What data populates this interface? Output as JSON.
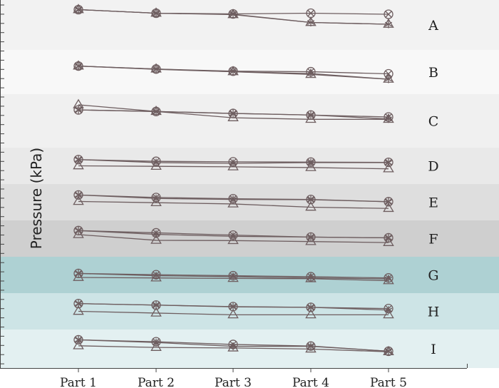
{
  "chart_data": {
    "type": "line",
    "layout": "stacked-bands",
    "categories": [
      "Part 1",
      "Part 2",
      "Part 3",
      "Part 4",
      "Part 5"
    ],
    "ylabel": "Pressure (kPa)",
    "xlabel": "",
    "grid": false,
    "series_markers": [
      "circle-x",
      "asterisk",
      "triangle"
    ],
    "bands": [
      {
        "label": "A",
        "color": "#f2f2f2",
        "range": [
          0,
          10
        ],
        "series": [
          {
            "marker": "circle-x",
            "values": [
              9.3,
              8.3,
              8.1,
              8.3,
              8.0
            ]
          },
          {
            "marker": "asterisk",
            "values": [
              9.3,
              8.3,
              8.0,
              5.7,
              5.2
            ]
          },
          {
            "marker": "triangle",
            "values": [
              9.3,
              8.3,
              7.9,
              5.7,
              5.2
            ]
          }
        ]
      },
      {
        "label": "B",
        "color": "#f8f8f8",
        "range": [
          0,
          10
        ],
        "series": [
          {
            "marker": "circle-x",
            "values": [
              7.0,
              6.0,
              5.3,
              5.1,
              4.4
            ]
          },
          {
            "marker": "asterisk",
            "values": [
              7.0,
              5.9,
              5.1,
              4.5,
              2.6
            ]
          },
          {
            "marker": "triangle",
            "values": [
              7.0,
              6.0,
              5.1,
              4.2,
              2.6
            ]
          }
        ]
      },
      {
        "label": "C",
        "color": "#f0f0f0",
        "range": [
          0,
          10
        ],
        "series": [
          {
            "marker": "circle-x",
            "values": [
              7.8,
              7.4,
              6.9,
              6.5,
              6.0
            ]
          },
          {
            "marker": "asterisk",
            "values": [
              7.8,
              7.4,
              6.9,
              6.5,
              5.5
            ]
          },
          {
            "marker": "triangle",
            "values": [
              9.1,
              7.4,
              5.8,
              5.4,
              5.4
            ]
          }
        ]
      },
      {
        "label": "D",
        "color": "#e9e9e9",
        "range": [
          0,
          10
        ],
        "series": [
          {
            "marker": "circle-x",
            "values": [
              7.5,
              6.8,
              6.6,
              6.5,
              6.4
            ]
          },
          {
            "marker": "asterisk",
            "values": [
              7.5,
              6.3,
              6.0,
              6.3,
              6.3
            ]
          },
          {
            "marker": "triangle",
            "values": [
              5.0,
              4.8,
              4.6,
              4.3,
              3.8
            ]
          }
        ]
      },
      {
        "label": "E",
        "color": "#dedede",
        "range": [
          0,
          10
        ],
        "series": [
          {
            "marker": "circle-x",
            "values": [
              7.9,
              6.9,
              6.4,
              6.1,
              5.2
            ]
          },
          {
            "marker": "asterisk",
            "values": [
              7.9,
              6.5,
              6.1,
              6.0,
              5.2
            ]
          },
          {
            "marker": "triangle",
            "values": [
              5.3,
              4.8,
              4.3,
              3.0,
              2.5
            ]
          }
        ]
      },
      {
        "label": "F",
        "color": "#cfcfcf",
        "range": [
          0,
          10
        ],
        "series": [
          {
            "marker": "circle-x",
            "values": [
              8.2,
              7.3,
              6.4,
              5.6,
              5.3
            ]
          },
          {
            "marker": "asterisk",
            "values": [
              8.2,
              6.7,
              5.9,
              5.6,
              5.3
            ]
          },
          {
            "marker": "triangle",
            "values": [
              6.6,
              4.3,
              4.2,
              3.8,
              3.4
            ]
          }
        ]
      },
      {
        "label": "G",
        "color": "#aed1d3",
        "range": [
          0,
          10
        ],
        "series": [
          {
            "marker": "circle-x",
            "values": [
              5.6,
              5.1,
              4.7,
              4.3,
              3.8
            ]
          },
          {
            "marker": "asterisk",
            "values": [
              5.6,
              4.7,
              4.3,
              3.8,
              3.4
            ]
          },
          {
            "marker": "triangle",
            "values": [
              4.0,
              3.8,
              3.6,
              3.5,
              2.7
            ]
          }
        ]
      },
      {
        "label": "H",
        "color": "#cde4e6",
        "range": [
          0,
          10
        ],
        "series": [
          {
            "marker": "circle-x",
            "values": [
              8.1,
              7.5,
              6.9,
              6.6,
              6.1
            ]
          },
          {
            "marker": "asterisk",
            "values": [
              8.1,
              7.5,
              6.8,
              6.6,
              5.5
            ]
          },
          {
            "marker": "triangle",
            "values": [
              5.0,
              4.3,
              3.6,
              3.6,
              3.6
            ]
          }
        ]
      },
      {
        "label": "I",
        "color": "#e3f0f1",
        "range": [
          0,
          10
        ],
        "series": [
          {
            "marker": "circle-x",
            "values": [
              8.3,
              7.6,
              6.6,
              6.0,
              4.1
            ]
          },
          {
            "marker": "asterisk",
            "values": [
              8.3,
              7.3,
              5.9,
              5.9,
              4.1
            ]
          },
          {
            "marker": "triangle",
            "values": [
              6.1,
              5.5,
              5.3,
              4.9,
              3.9
            ]
          }
        ]
      }
    ],
    "colors": {
      "line": "#6e5e60",
      "axis": "#444444",
      "text": "#222222"
    }
  }
}
